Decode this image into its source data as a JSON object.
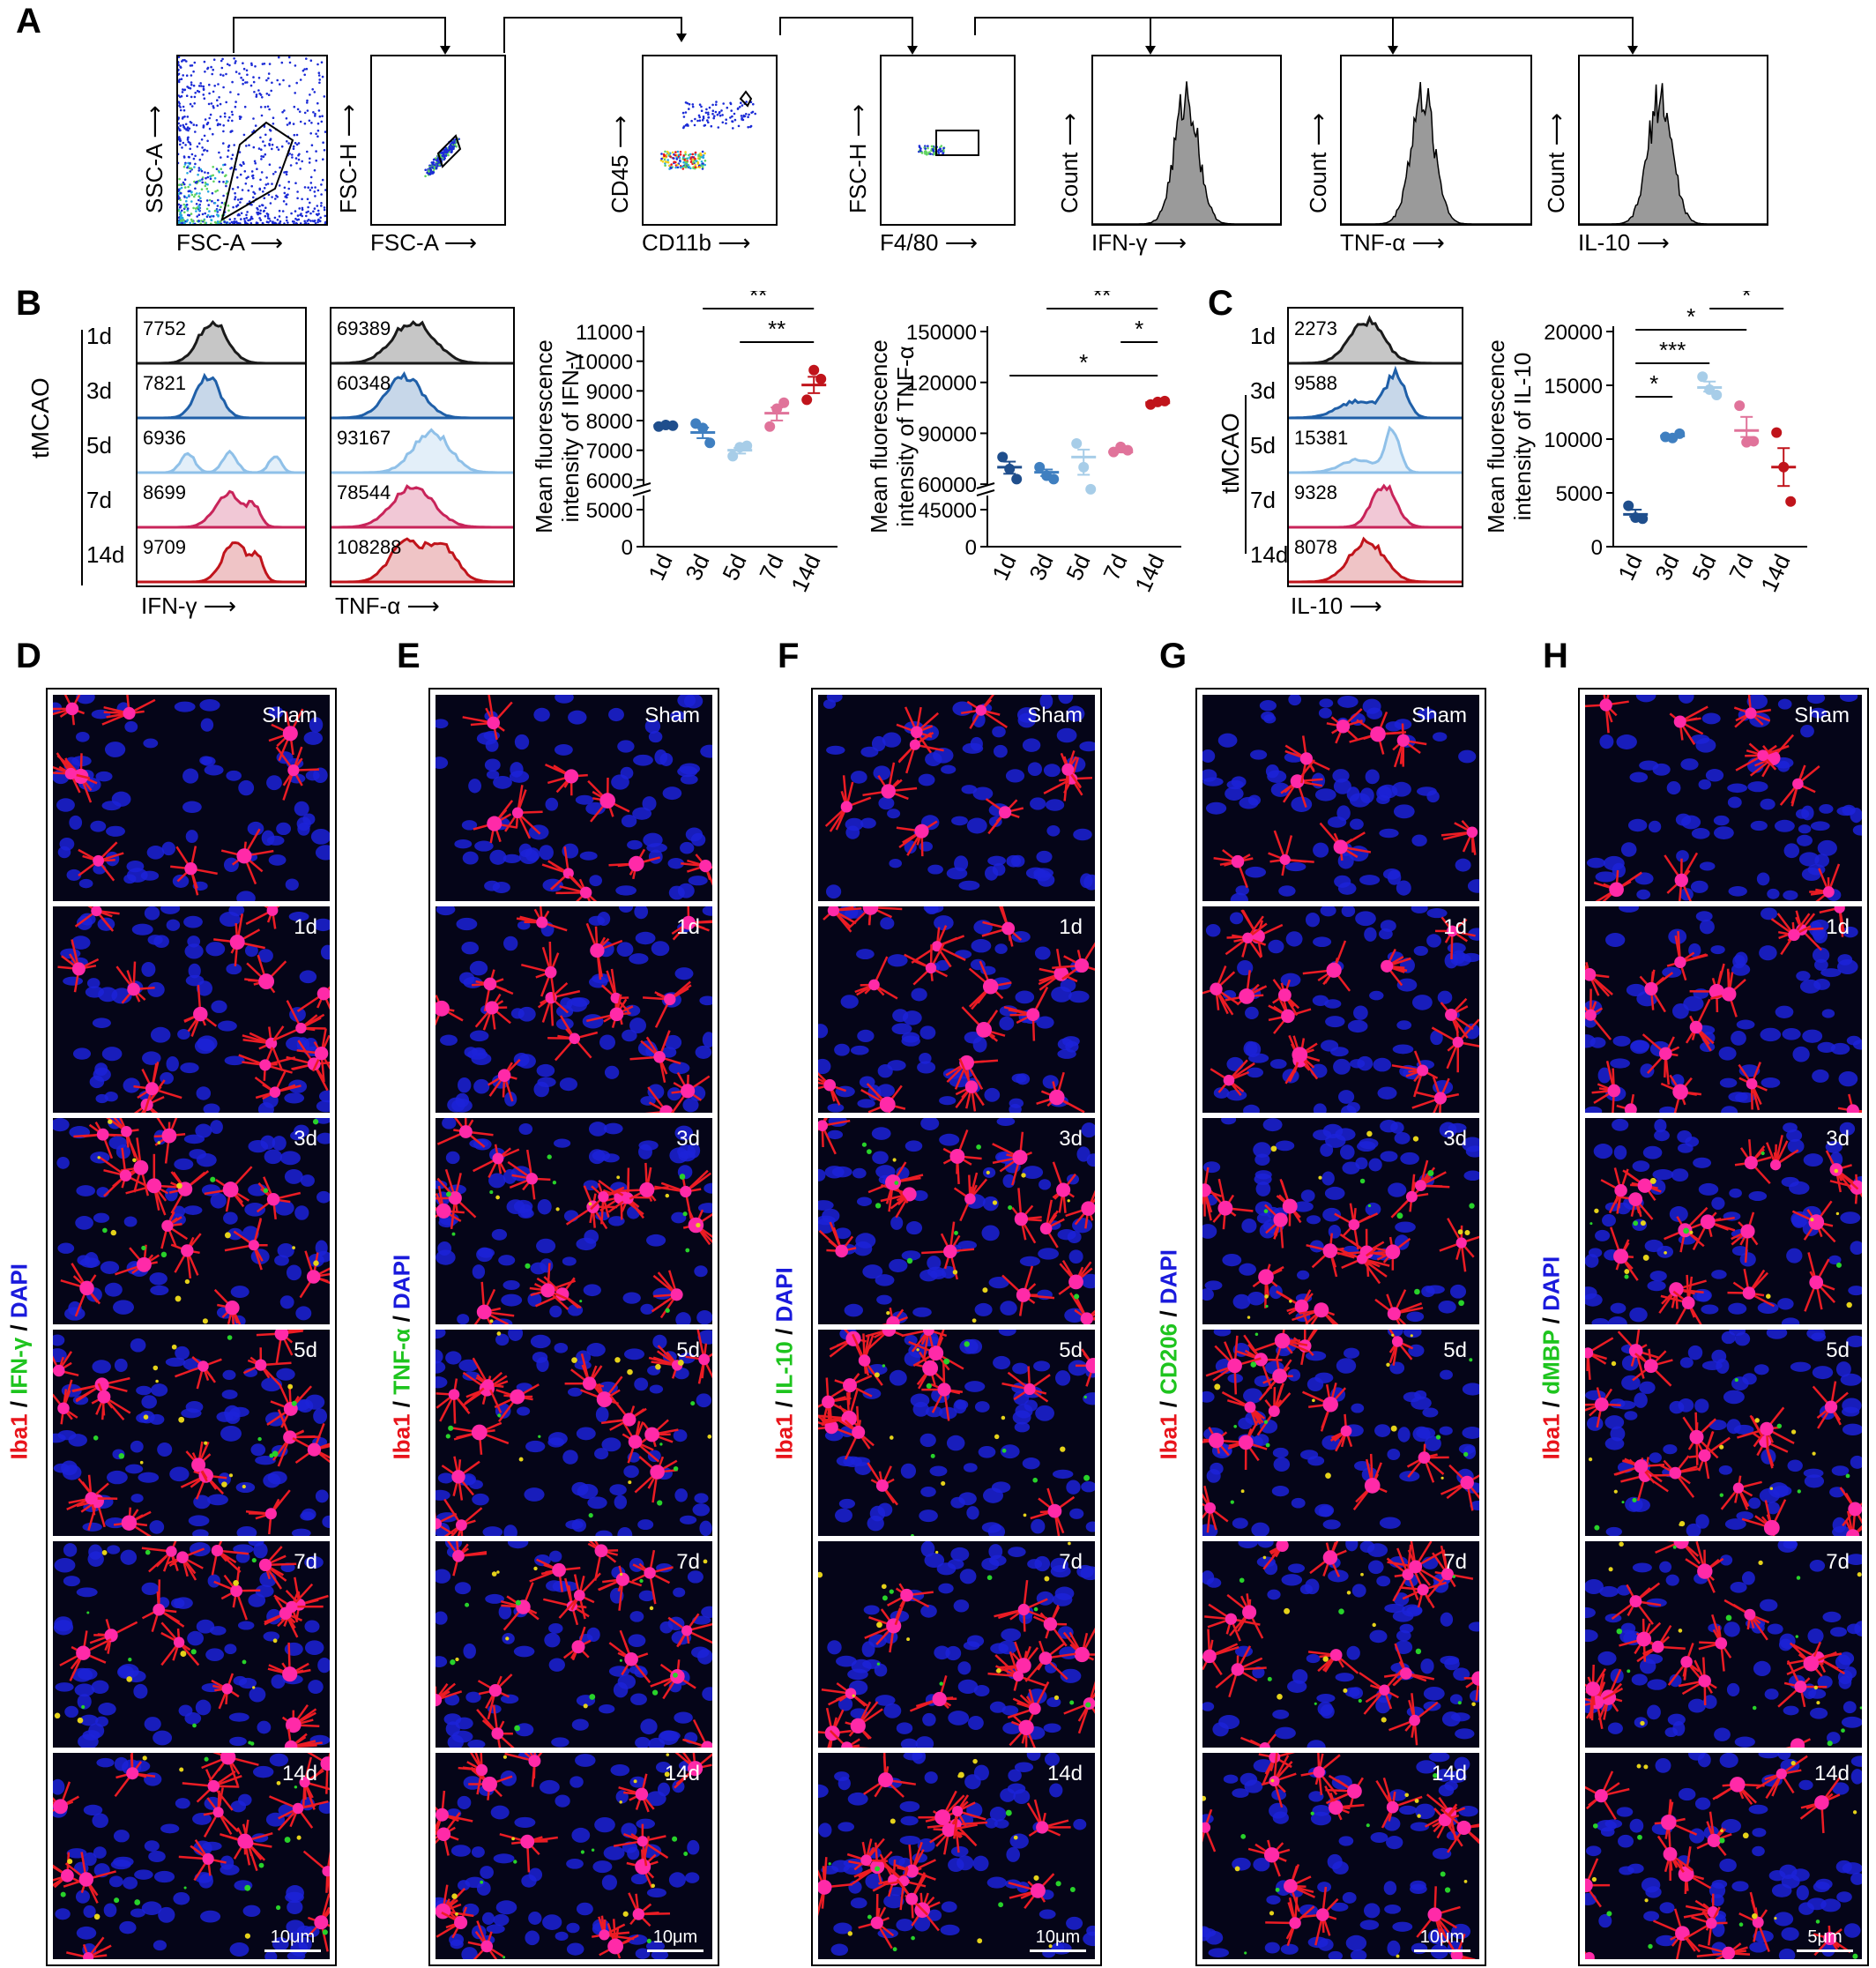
{
  "panel_letters": {
    "A": "A",
    "B": "B",
    "C": "C",
    "D": "D",
    "E": "E",
    "F": "F",
    "G": "G",
    "H": "H"
  },
  "flow_gating": [
    {
      "id": "g1",
      "xlabel": "FSC-A",
      "ylabel": "SSC-A",
      "type": "scatter"
    },
    {
      "id": "g2",
      "xlabel": "FSC-A",
      "ylabel": "FSC-H",
      "type": "scatter"
    },
    {
      "id": "g3",
      "xlabel": "CD11b",
      "ylabel": "CD45",
      "type": "scatter"
    },
    {
      "id": "g4",
      "xlabel": "F4/80",
      "ylabel": "FSC-H",
      "type": "scatter"
    },
    {
      "id": "g5",
      "xlabel": "IFN-γ",
      "ylabel": "Count",
      "type": "hist"
    },
    {
      "id": "g6",
      "xlabel": "TNF-α",
      "ylabel": "Count",
      "type": "hist"
    },
    {
      "id": "g7",
      "xlabel": "IL-10",
      "ylabel": "Count",
      "type": "hist"
    }
  ],
  "hist_B_ifn": {
    "xlabel": "IFN-γ",
    "values": [
      "7752",
      "7821",
      "6936",
      "8699",
      "9709"
    ]
  },
  "hist_B_tnf": {
    "xlabel": "TNF-α",
    "values": [
      "69389",
      "60348",
      "93167",
      "78544",
      "108288"
    ]
  },
  "hist_C_il10": {
    "xlabel": "IL-10",
    "values": [
      "2273",
      "9588",
      "15381",
      "9328",
      "8078"
    ]
  },
  "hist_days": [
    "1d",
    "3d",
    "5d",
    "7d",
    "14d"
  ],
  "group_label": "tMCAO",
  "hist_colors": [
    "#1a1a1a",
    "#1f5fa8",
    "#8fc0e8",
    "#c8245a",
    "#c0141b"
  ],
  "chart_data": [
    {
      "type": "scatter",
      "ylabel": "Mean fluorescence intensity of IFN-γ",
      "categories": [
        "1d",
        "3d",
        "5d",
        "7d",
        "14d"
      ],
      "colors": [
        "#1f4e8c",
        "#3f7fc0",
        "#a7cde8",
        "#e0739a",
        "#c0141b"
      ],
      "yticks": [
        "0",
        "5000",
        "6000",
        "7000",
        "8000",
        "9000",
        "10000",
        "11000"
      ],
      "means": [
        7830,
        7600,
        7000,
        8250,
        9200
      ],
      "points": [
        [
          7800,
          7850,
          7830
        ],
        [
          7900,
          7750,
          7250
        ],
        [
          6800,
          7100,
          7150
        ],
        [
          7800,
          8400,
          8600
        ],
        [
          8700,
          9700,
          9400
        ]
      ],
      "signif": [
        {
          "from": "3d",
          "to": "14d",
          "label": "**"
        },
        {
          "from": "5d",
          "to": "14d",
          "label": "**"
        }
      ]
    },
    {
      "type": "scatter",
      "ylabel": "Mean fluorescence intensity of TNF-α",
      "categories": [
        "1d",
        "3d",
        "5d",
        "7d",
        "14d"
      ],
      "colors": [
        "#1f4e8c",
        "#3f7fc0",
        "#a7cde8",
        "#e0739a",
        "#c0141b"
      ],
      "yticks": [
        "0",
        "45000",
        "60000",
        "90000",
        "120000",
        "150000"
      ],
      "means": [
        70000,
        67000,
        76000,
        79000,
        108000
      ],
      "points": [
        [
          76000,
          69000,
          63000
        ],
        [
          70000,
          65000,
          63000
        ],
        [
          84000,
          70000,
          57000
        ],
        [
          79000,
          82000,
          80000
        ],
        [
          107000,
          108500,
          109000
        ]
      ],
      "signif": [
        {
          "from": "3d",
          "to": "14d",
          "label": "**"
        },
        {
          "from": "7d",
          "to": "14d",
          "label": "*"
        },
        {
          "from": "1d",
          "to": "14d",
          "label": "*"
        }
      ]
    },
    {
      "type": "scatter",
      "ylabel": "Mean fluorescence intensity of IL-10",
      "categories": [
        "1d",
        "3d",
        "5d",
        "7d",
        "14d"
      ],
      "colors": [
        "#1f4e8c",
        "#3f7fc0",
        "#a7cde8",
        "#e0739a",
        "#c0141b"
      ],
      "yticks": [
        "0",
        "5000",
        "10000",
        "15000",
        "20000"
      ],
      "means": [
        3000,
        10300,
        14800,
        10800,
        7400
      ],
      "points": [
        [
          3800,
          2700,
          2600
        ],
        [
          10200,
          10100,
          10500
        ],
        [
          15800,
          14600,
          14100
        ],
        [
          13100,
          9700,
          9800
        ],
        [
          10600,
          7400,
          4200
        ]
      ],
      "signif": [
        {
          "from": "1d",
          "to": "3d",
          "label": "*"
        },
        {
          "from": "1d",
          "to": "5d",
          "label": "***"
        },
        {
          "from": "1d",
          "to": "7d",
          "label": "*"
        },
        {
          "from": "5d",
          "to": "14d",
          "label": "*"
        }
      ]
    }
  ],
  "micro_columns": [
    {
      "id": "D",
      "stain": [
        "Iba1",
        " / ",
        "IFN-γ",
        " / ",
        "DAPI"
      ],
      "scale": "10μm"
    },
    {
      "id": "E",
      "stain": [
        "Iba1",
        " / ",
        "TNF-α",
        " / ",
        "DAPI"
      ],
      "scale": "10μm"
    },
    {
      "id": "F",
      "stain": [
        "Iba1",
        " / ",
        "IL-10",
        " / ",
        "DAPI"
      ],
      "scale": "10μm"
    },
    {
      "id": "G",
      "stain": [
        "Iba1",
        " / ",
        "CD206",
        " / ",
        "DAPI"
      ],
      "scale": "10μm"
    },
    {
      "id": "H",
      "stain": [
        "Iba1",
        " / ",
        "dMBP",
        " / ",
        "DAPI"
      ],
      "scale": "5μm"
    }
  ],
  "micro_rows": [
    "Sham",
    "1d",
    "3d",
    "5d",
    "7d",
    "14d"
  ],
  "stain_colors": {
    "red": "#e8141b",
    "green": "#1ec41e",
    "blue": "#1a1adc",
    "sep": "#000000"
  }
}
